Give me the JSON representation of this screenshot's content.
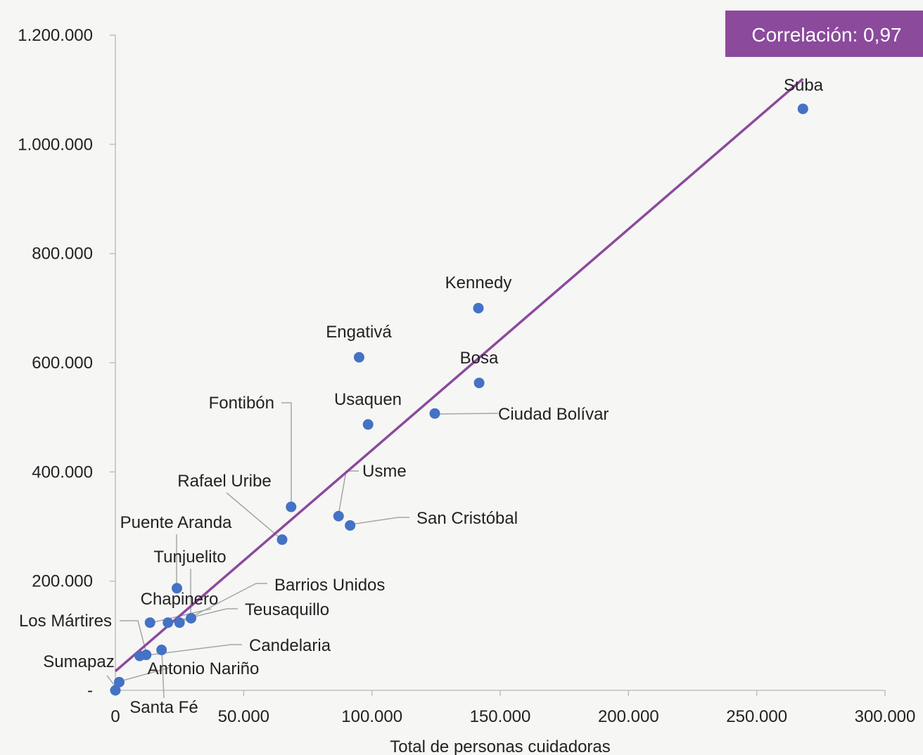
{
  "chart_data": {
    "type": "scatter",
    "xlabel": "Total de personas cuidadoras",
    "ylabel": "",
    "xlim": [
      0,
      300000
    ],
    "ylim": [
      0,
      1200000
    ],
    "x_ticks": [
      "0",
      "50.000",
      "100.000",
      "150.000",
      "200.000",
      "250.000",
      "300.000"
    ],
    "x_tick_values": [
      0,
      50000,
      100000,
      150000,
      200000,
      250000,
      300000
    ],
    "y_ticks": [
      "-",
      "200.000",
      "400.000",
      "600.000",
      "800.000",
      "1.000.000",
      "1.200.000"
    ],
    "y_tick_values": [
      0,
      200000,
      400000,
      600000,
      800000,
      1000000,
      1200000
    ],
    "grid": false,
    "annotation": "Correlación: 0,97",
    "trendline": {
      "x": [
        0,
        268000
      ],
      "y": [
        35000,
        1120000
      ]
    },
    "point_color": "#4472c4",
    "line_color": "#8b4a9c",
    "badge_color": "#8b4a9c",
    "points": [
      {
        "label": "Suba",
        "x": 268000,
        "y": 1065000
      },
      {
        "label": "Kennedy",
        "x": 141500,
        "y": 700000
      },
      {
        "label": "Engativá",
        "x": 95000,
        "y": 610000
      },
      {
        "label": "Bosa",
        "x": 141800,
        "y": 563000
      },
      {
        "label": "Usaquen",
        "x": 98500,
        "y": 487000
      },
      {
        "label": "Ciudad Bolívar",
        "x": 124500,
        "y": 507000
      },
      {
        "label": "Fontibón",
        "x": 68500,
        "y": 336000
      },
      {
        "label": "Usme",
        "x": 87000,
        "y": 319000
      },
      {
        "label": "San Cristóbal",
        "x": 91500,
        "y": 302000
      },
      {
        "label": "Rafael Uribe",
        "x": 65000,
        "y": 276000
      },
      {
        "label": "Puente Aranda",
        "x": 24000,
        "y": 187000
      },
      {
        "label": "Tunjuelito",
        "x": 29500,
        "y": 132000
      },
      {
        "label": "Barrios Unidos",
        "x": 25000,
        "y": 124000
      },
      {
        "label": "Teusaquillo",
        "x": 20500,
        "y": 124000
      },
      {
        "label": "Chapinero",
        "x": 13500,
        "y": 124000
      },
      {
        "label": "Los Mártires",
        "x": 12000,
        "y": 65000
      },
      {
        "label": "Candelaria",
        "x": 9500,
        "y": 63000
      },
      {
        "label": "Santa Fé",
        "x": 18000,
        "y": 74000
      },
      {
        "label": "Antonio Nariño",
        "x": 1500,
        "y": 15000
      },
      {
        "label": "Sumapaz",
        "x": 0,
        "y": 0
      }
    ]
  }
}
